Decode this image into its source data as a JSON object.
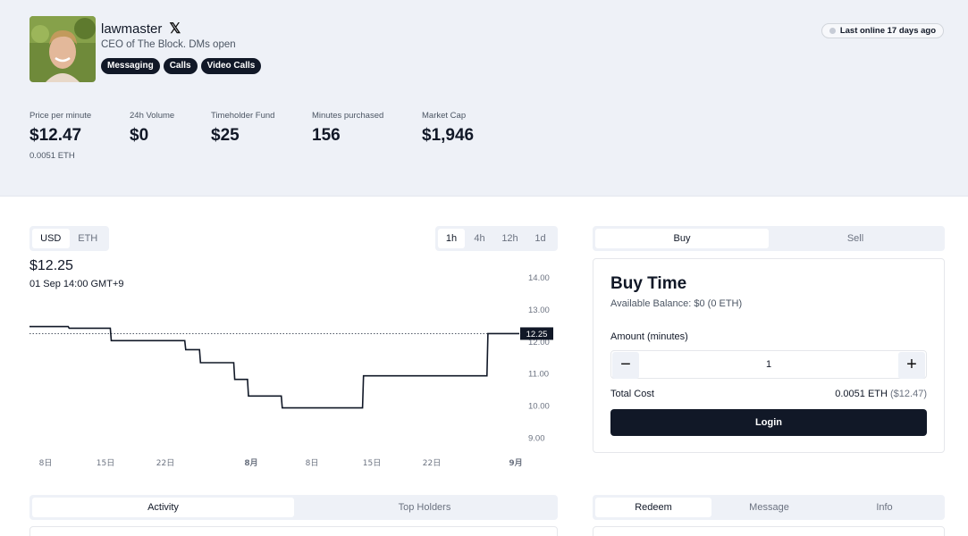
{
  "profile": {
    "name": "lawmaster",
    "bio": "CEO of The Block. DMs open",
    "chips": [
      "Messaging",
      "Calls",
      "Video Calls"
    ],
    "status": "Last online 17 days ago"
  },
  "stats": {
    "price_per_minute": {
      "label": "Price per minute",
      "value": "$12.47",
      "sub": "0.0051 ETH"
    },
    "volume": {
      "label": "24h Volume",
      "value": "$0"
    },
    "fund": {
      "label": "Timeholder Fund",
      "value": "$25"
    },
    "minutes": {
      "label": "Minutes purchased",
      "value": "156"
    },
    "market_cap": {
      "label": "Market Cap",
      "value": "$1,946"
    }
  },
  "currency_toggle": {
    "options": [
      "USD",
      "ETH"
    ],
    "selected": "USD"
  },
  "timeframe_toggle": {
    "options": [
      "1h",
      "4h",
      "12h",
      "1d"
    ],
    "selected": "1h"
  },
  "chart_header": {
    "price": "$12.25",
    "date": "01 Sep 14:00 GMT+9"
  },
  "chart_data": {
    "type": "line",
    "step": true,
    "x": [
      "8日",
      "15日",
      "22日",
      "8月",
      "8日",
      "15日",
      "22日",
      "9月"
    ],
    "y_ticks": [
      14.0,
      13.0,
      12.0,
      11.0,
      10.0,
      9.0
    ],
    "y_tick_labels": [
      "14.00",
      "13.00",
      "12.00",
      "11.00",
      "10.00",
      "9.00"
    ],
    "ylim": [
      8.55,
      14.3
    ],
    "xlim": [
      0,
      100
    ],
    "series": [
      {
        "x": [
          0,
          7.9,
          8.1,
          16.5,
          16.7,
          31.7,
          31.9,
          34.7,
          34.9,
          41.1,
          41.3,
          41.7,
          41.9,
          44.5,
          44.7,
          51.4,
          51.6,
          68.0,
          68.2,
          93.4,
          93.6,
          100
        ],
        "y": [
          12.47,
          12.47,
          12.42,
          12.42,
          12.03,
          12.03,
          11.75,
          11.75,
          11.34,
          11.34,
          11.34,
          11.34,
          10.82,
          10.82,
          10.3,
          10.3,
          9.93,
          9.93,
          10.93,
          10.93,
          12.25,
          12.25
        ]
      }
    ],
    "current_value": 12.25,
    "current_label": "12.25"
  },
  "trade_tabs": {
    "options": [
      "Buy",
      "Sell"
    ],
    "selected": "Buy"
  },
  "buy": {
    "title": "Buy Time",
    "balance": "Available Balance: $0 (0 ETH)",
    "amount_label": "Amount (minutes)",
    "quantity": "1",
    "minus": "−",
    "plus": "+",
    "total_label": "Total Cost",
    "total_eth": "0.0051 ETH",
    "total_usd": "($12.47)",
    "login": "Login"
  },
  "activity_tabs": {
    "options": [
      "Activity",
      "Top Holders"
    ],
    "selected": "Activity"
  },
  "redeem_tabs": {
    "options": [
      "Redeem",
      "Message",
      "Info"
    ],
    "selected": "Redeem"
  }
}
